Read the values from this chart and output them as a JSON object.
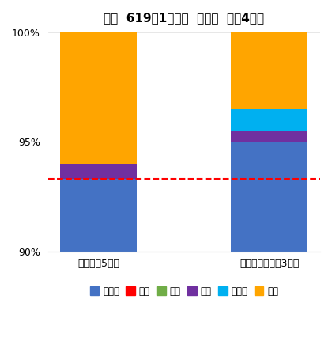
{
  "title": "ヒバ  619ろ1林小班  秋植え  植栽4年目",
  "categories": [
    "ヒバ裸苕5年生",
    "ヒバコンテナ苕3年生"
  ],
  "ylim": [
    90,
    100
  ],
  "yticks": [
    90,
    95,
    100
  ],
  "yticklabels": [
    "90%",
    "95%",
    "100%"
  ],
  "red_line_y": 93.3,
  "legend_order": [
    "生存木",
    "獣害",
    "雪害",
    "誤伐",
    "苗抜け",
    "不明"
  ],
  "segments": [
    {
      "name": "生存木",
      "color": "#4472C4",
      "values": [
        3.3,
        5.0
      ]
    },
    {
      "name": "獣害",
      "color": "#FF0000",
      "values": [
        0.0,
        0.0
      ]
    },
    {
      "name": "雪害",
      "color": "#70AD47",
      "values": [
        0.0,
        0.0
      ]
    },
    {
      "name": "誤伐",
      "color": "#7030A0",
      "values": [
        0.7,
        0.5
      ]
    },
    {
      "name": "苗抜け",
      "color": "#00B0F0",
      "values": [
        0.0,
        1.0
      ]
    },
    {
      "name": "不明",
      "color": "#FFA500",
      "values": [
        6.0,
        3.5
      ]
    }
  ],
  "bar_width": 0.45,
  "bar_positions": [
    0,
    1
  ],
  "figsize": [
    4.2,
    4.26
  ],
  "dpi": 100,
  "background_color": "#FFFFFF",
  "title_fontsize": 11,
  "axis_fontsize": 9,
  "legend_fontsize": 8.5
}
